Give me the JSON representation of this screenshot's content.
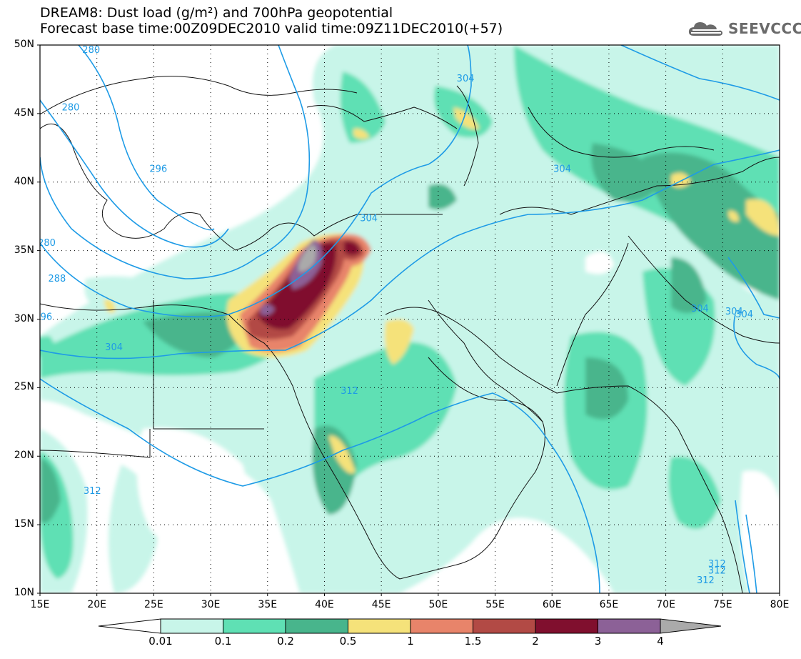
{
  "title_line1": "DREAM8: Dust load (g/m²) and 700hPa geopotential",
  "title_line2": "Forecast base time:00Z09DEC2010 valid time:09Z11DEC2010(+57)",
  "logo_text": "SEEVCCC",
  "logo_icon": "cloud-icon",
  "map": {
    "lon_range": [
      15,
      80
    ],
    "lat_range": [
      10,
      50
    ],
    "lat_labels": [
      "50N",
      "45N",
      "40N",
      "35N",
      "30N",
      "25N",
      "20N",
      "15N",
      "10N"
    ],
    "lon_labels": [
      "15E",
      "20E",
      "25E",
      "30E",
      "35E",
      "40E",
      "45E",
      "50E",
      "55E",
      "60E",
      "65E",
      "70E",
      "75E",
      "80E"
    ],
    "grid_lines": "dotted"
  },
  "contours": {
    "color": "#1e9be6",
    "labels": [
      {
        "text": "280",
        "lon": 19.5,
        "lat": 49.7
      },
      {
        "text": "280",
        "lon": 17.7,
        "lat": 45.5
      },
      {
        "text": "280",
        "lon": 15.6,
        "lat": 35.6
      },
      {
        "text": "288",
        "lon": 16.5,
        "lat": 33.0
      },
      {
        "text": "296",
        "lon": 25.4,
        "lat": 41.0
      },
      {
        "text": "296",
        "lon": 15.3,
        "lat": 30.2
      },
      {
        "text": "304",
        "lon": 52.4,
        "lat": 47.6
      },
      {
        "text": "304",
        "lon": 60.9,
        "lat": 41.0
      },
      {
        "text": "304",
        "lon": 43.9,
        "lat": 37.4
      },
      {
        "text": "304",
        "lon": 21.5,
        "lat": 28.0
      },
      {
        "text": "304",
        "lon": 73.0,
        "lat": 30.8
      },
      {
        "text": "304",
        "lon": 76.0,
        "lat": 30.6
      },
      {
        "text": "304",
        "lon": 76.9,
        "lat": 30.4
      },
      {
        "text": "312",
        "lon": 42.2,
        "lat": 24.8
      },
      {
        "text": "312",
        "lon": 19.6,
        "lat": 17.5
      },
      {
        "text": "312",
        "lon": 74.5,
        "lat": 12.2
      },
      {
        "text": "312",
        "lon": 74.5,
        "lat": 11.7
      },
      {
        "text": "312",
        "lon": 73.5,
        "lat": 11.0
      }
    ]
  },
  "colorbar": {
    "labels": [
      "0.01",
      "0.1",
      "0.2",
      "0.5",
      "1",
      "1.5",
      "2",
      "3",
      "4"
    ],
    "colors": [
      "#ffffff",
      "#c8f5e9",
      "#5fe0b4",
      "#48b58c",
      "#f5e27a",
      "#e8846a",
      "#b24a45",
      "#800f2e",
      "#8c6197",
      "#aaaaaa"
    ]
  }
}
